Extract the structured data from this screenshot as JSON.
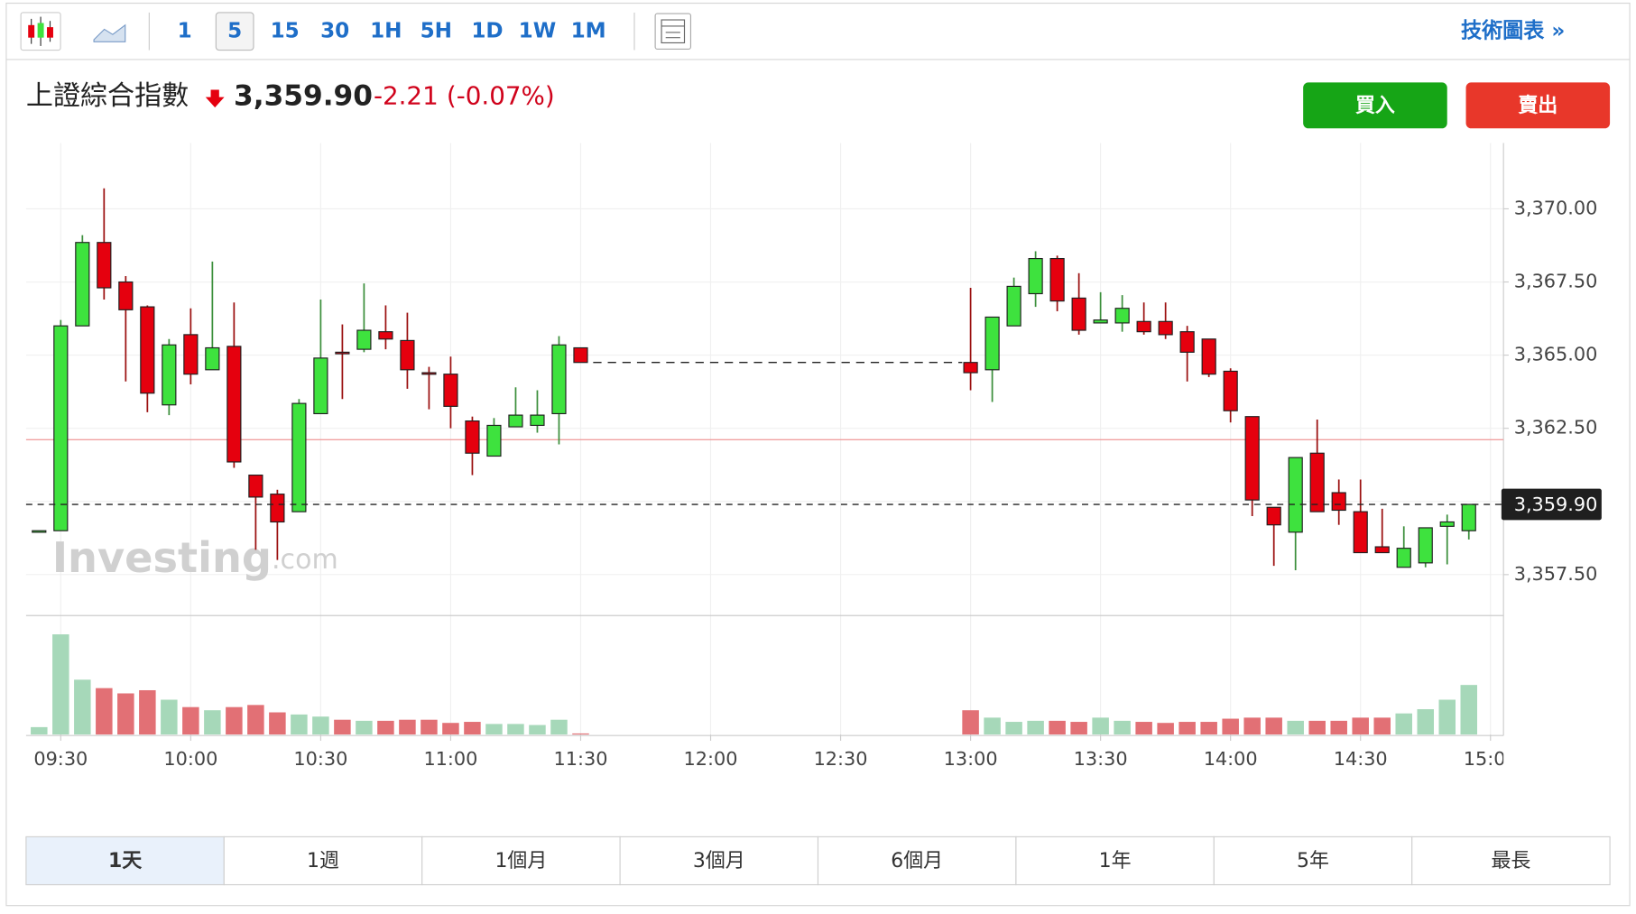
{
  "toolbar": {
    "intervals": [
      "1",
      "5",
      "15",
      "30",
      "1H",
      "5H",
      "1D",
      "1W",
      "1M"
    ],
    "selected": 1,
    "link": "技術圖表 »"
  },
  "header": {
    "name": "上證綜合指數",
    "change": "-2.21",
    "change_pct": "(-0.07%)",
    "buy": "買入",
    "sell": "賣出"
  },
  "watermark": {
    "brand": "Investing",
    "suffix": ".com"
  },
  "ranges": {
    "items": [
      "1天",
      "1週",
      "1個月",
      "3個月",
      "6個月",
      "1年",
      "5年",
      "最長"
    ],
    "selected": 0
  },
  "chart_data": {
    "type": "candlestick",
    "x": [
      "09:25",
      "09:30",
      "09:35",
      "09:40",
      "09:45",
      "09:50",
      "09:55",
      "10:00",
      "10:05",
      "10:10",
      "10:15",
      "10:20",
      "10:25",
      "10:30",
      "10:35",
      "10:40",
      "10:45",
      "10:50",
      "10:55",
      "11:00",
      "11:05",
      "11:10",
      "11:15",
      "11:20",
      "11:25",
      "11:30",
      "13:00",
      "13:05",
      "13:10",
      "13:15",
      "13:20",
      "13:25",
      "13:30",
      "13:35",
      "13:40",
      "13:45",
      "13:50",
      "13:55",
      "14:00",
      "14:05",
      "14:10",
      "14:15",
      "14:20",
      "14:25",
      "14:30",
      "14:35",
      "14:40",
      "14:45",
      "14:50",
      "14:55"
    ],
    "open": [
      3359.0,
      3359.0,
      3366.0,
      3368.85,
      3367.5,
      3366.65,
      3363.3,
      3365.7,
      3364.5,
      3365.3,
      3360.9,
      3360.25,
      3359.65,
      3363.0,
      3365.1,
      3365.2,
      3365.8,
      3365.5,
      3364.4,
      3364.35,
      3362.75,
      3361.55,
      3362.55,
      3362.6,
      3363.0,
      3365.25,
      3364.75,
      3364.5,
      3366.0,
      3367.1,
      3368.3,
      3366.95,
      3366.1,
      3366.1,
      3366.15,
      3366.15,
      3365.8,
      3365.55,
      3364.45,
      3362.9,
      3359.8,
      3358.95,
      3361.65,
      3360.3,
      3359.65,
      3358.45,
      3357.75,
      3357.9,
      3359.15,
      3359.0
    ],
    "high": [
      3359.0,
      3366.2,
      3369.1,
      3370.7,
      3367.7,
      3366.7,
      3365.55,
      3366.6,
      3368.2,
      3366.8,
      3360.9,
      3360.4,
      3363.5,
      3366.9,
      3366.05,
      3367.45,
      3366.7,
      3366.45,
      3364.6,
      3364.95,
      3362.9,
      3362.85,
      3363.9,
      3363.8,
      3365.65,
      3365.25,
      3367.3,
      3366.3,
      3367.65,
      3368.55,
      3368.4,
      3367.8,
      3367.15,
      3367.05,
      3366.8,
      3366.8,
      3366.0,
      3365.55,
      3364.55,
      3362.9,
      3359.8,
      3361.5,
      3362.8,
      3360.75,
      3360.75,
      3359.75,
      3359.15,
      3359.1,
      3359.55,
      3359.9
    ],
    "low": [
      3359.0,
      3359.0,
      3366.0,
      3366.9,
      3364.1,
      3363.05,
      3362.95,
      3364.0,
      3364.5,
      3361.15,
      3358.35,
      3358.0,
      3359.65,
      3363.0,
      3363.5,
      3365.1,
      3365.2,
      3363.85,
      3363.15,
      3362.5,
      3360.9,
      3361.55,
      3362.55,
      3362.35,
      3361.95,
      3364.75,
      3363.8,
      3363.4,
      3366.0,
      3366.65,
      3366.5,
      3365.7,
      3366.1,
      3365.8,
      3365.7,
      3365.55,
      3364.1,
      3364.25,
      3362.7,
      3359.5,
      3357.8,
      3357.65,
      3359.65,
      3359.2,
      3358.25,
      3358.25,
      3357.75,
      3357.75,
      3357.85,
      3358.7
    ],
    "close": [
      3359.0,
      3366.0,
      3368.85,
      3367.3,
      3366.55,
      3363.7,
      3365.35,
      3364.35,
      3365.25,
      3361.35,
      3360.15,
      3359.3,
      3363.35,
      3364.9,
      3365.05,
      3365.85,
      3365.55,
      3364.5,
      3364.35,
      3363.25,
      3361.65,
      3362.6,
      3362.95,
      3362.95,
      3365.35,
      3364.75,
      3364.4,
      3366.3,
      3367.35,
      3368.3,
      3366.85,
      3365.85,
      3366.2,
      3366.6,
      3365.8,
      3365.7,
      3365.1,
      3364.35,
      3363.1,
      3360.05,
      3359.2,
      3361.5,
      3359.65,
      3359.7,
      3358.25,
      3358.25,
      3358.4,
      3359.1,
      3359.3,
      3359.9
    ],
    "volume": [
      7,
      95,
      52,
      44,
      39,
      42,
      33,
      26,
      23,
      26,
      28,
      21,
      19,
      17,
      14,
      13,
      13,
      14,
      14,
      11,
      12,
      10,
      10,
      9,
      14,
      1,
      23,
      16,
      12,
      13,
      13,
      12,
      16,
      13,
      12,
      11,
      12,
      12,
      15,
      16,
      16,
      13,
      13,
      13,
      16,
      16,
      20,
      24,
      33,
      47
    ],
    "up_color": "#3ee23e",
    "down_color": "#e5000e",
    "volume_up_color": "#a6d8b9",
    "volume_down_color": "#e27075",
    "ylim": [
      3356.1,
      3372.25
    ],
    "yticks": [
      {
        "value": 3357.5,
        "label": "3,357.50"
      },
      {
        "value": 3360,
        "label": "3,360.00"
      },
      {
        "value": 3362.5,
        "label": "3,362.50"
      },
      {
        "value": 3365,
        "label": "3,365.00"
      },
      {
        "value": 3367.5,
        "label": "3,367.50"
      },
      {
        "value": 3370,
        "label": "3,370.00"
      }
    ],
    "xlim": [
      "09:22",
      "15:03"
    ],
    "xticks": [
      "09:30",
      "10:00",
      "10:30",
      "11:00",
      "11:30",
      "12:00",
      "12:30",
      "13:00",
      "13:30",
      "14:00",
      "14:30",
      "15:00"
    ],
    "last_price": {
      "value": 3359.9,
      "label": "3,359.90"
    },
    "prev_close": 3362.11,
    "grid": true
  }
}
